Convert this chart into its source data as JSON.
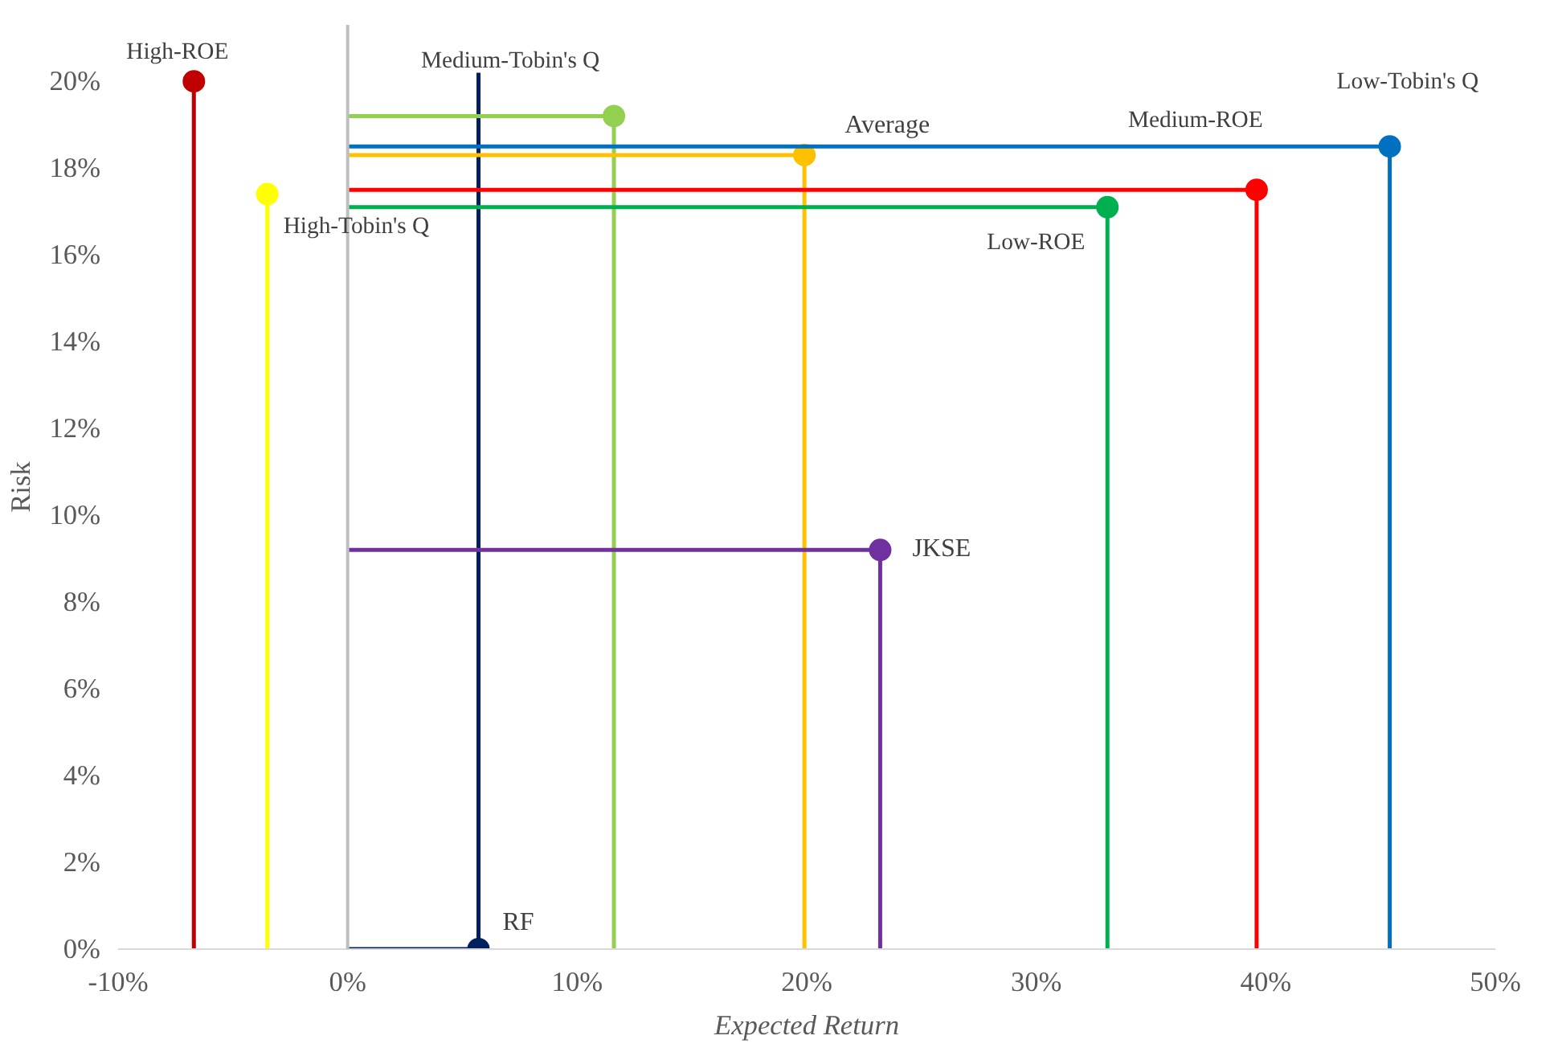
{
  "chart_data": {
    "type": "scatter",
    "xlabel": "Expected Return",
    "ylabel": "Risk",
    "marker": "circle",
    "grid": false,
    "xlim": [
      -10,
      50
    ],
    "ylim": [
      0,
      21.3
    ],
    "xticks": [
      {
        "value": -10,
        "label": "-10%"
      },
      {
        "value": 0,
        "label": "0%"
      },
      {
        "value": 10,
        "label": "10%"
      },
      {
        "value": 20,
        "label": "20%"
      },
      {
        "value": 30,
        "label": "30%"
      },
      {
        "value": 40,
        "label": "40%"
      },
      {
        "value": 50,
        "label": "50%"
      }
    ],
    "yticks": [
      {
        "value": 0,
        "label": "0%"
      },
      {
        "value": 2,
        "label": "2%"
      },
      {
        "value": 4,
        "label": "4%"
      },
      {
        "value": 6,
        "label": "6%"
      },
      {
        "value": 8,
        "label": "8%"
      },
      {
        "value": 10,
        "label": "10%"
      },
      {
        "value": 12,
        "label": "12%"
      },
      {
        "value": 14,
        "label": "14%"
      },
      {
        "value": 16,
        "label": "16%"
      },
      {
        "value": 18,
        "label": "18%"
      },
      {
        "value": 20,
        "label": "20%"
      }
    ],
    "ref_lines": [
      {
        "axis": "x",
        "value": 0,
        "color": "#bfbfbf"
      }
    ],
    "series": [
      {
        "name": "High-ROE",
        "color": "#c00000",
        "x": [
          -6.7
        ],
        "values": [
          20.0
        ],
        "errors": [
          [
            0,
            20.0
          ]
        ]
      },
      {
        "name": "High-Tobin's Q",
        "color": "#ffff00",
        "x": [
          -3.5
        ],
        "values": [
          17.4
        ],
        "errors": [
          [
            0,
            17.4
          ]
        ]
      },
      {
        "name": "RF",
        "color": "#002060",
        "x": [
          5.7
        ],
        "values": [
          0
        ],
        "errors": [
          [
            0,
            20.2
          ]
        ],
        "xerrors": [
          [
            0,
            5.7
          ]
        ]
      },
      {
        "name": "Medium-Tobin's Q",
        "color": "#92d050",
        "x": [
          11.6
        ],
        "values": [
          19.2
        ],
        "errors": [
          [
            0,
            19.2
          ]
        ],
        "xerrors": [
          [
            0,
            11.6
          ]
        ]
      },
      {
        "name": "Average",
        "color": "#ffc000",
        "x": [
          19.9
        ],
        "values": [
          18.3
        ],
        "errors": [
          [
            0,
            18.3
          ]
        ],
        "xerrors": [
          [
            0,
            19.9
          ]
        ]
      },
      {
        "name": "JKSE",
        "color": "#7030a0",
        "x": [
          23.2
        ],
        "values": [
          9.2
        ],
        "errors": [
          [
            0,
            9.2
          ]
        ],
        "xerrors": [
          [
            0,
            23.2
          ]
        ]
      },
      {
        "name": "Low-ROE",
        "color": "#00b050",
        "x": [
          33.1
        ],
        "values": [
          17.1
        ],
        "errors": [
          [
            0,
            17.1
          ]
        ],
        "xerrors": [
          [
            0,
            33.1
          ]
        ]
      },
      {
        "name": "Medium-ROE",
        "color": "#ff0000",
        "x": [
          39.6
        ],
        "values": [
          17.5
        ],
        "errors": [
          [
            0,
            17.5
          ]
        ],
        "xerrors": [
          [
            0,
            39.6
          ]
        ]
      },
      {
        "name": "Low-Tobin's Q",
        "color": "#0070c0",
        "x": [
          45.4
        ],
        "values": [
          18.5
        ],
        "errors": [
          [
            0,
            18.5
          ]
        ],
        "xerrors": [
          [
            0,
            45.4
          ]
        ]
      }
    ]
  }
}
